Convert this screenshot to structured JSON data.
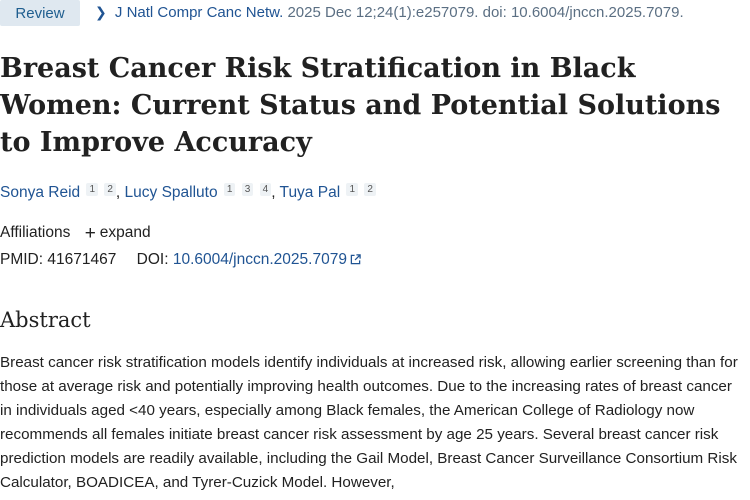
{
  "header": {
    "pub_type": "Review",
    "journal": "J Natl Compr Canc Netw.",
    "citation_rest": "2025 Dec 12;24(1):e257079. doi: 10.6004/jnccn.2025.7079."
  },
  "article": {
    "title": "Breast Cancer Risk Stratification in Black Women: Current Status and Potential Solutions to Improve Accuracy",
    "authors": [
      {
        "name": "Sonya Reid",
        "affiliations": [
          "1",
          "2"
        ]
      },
      {
        "name": "Lucy Spalluto",
        "affiliations": [
          "1",
          "3",
          "4"
        ]
      },
      {
        "name": "Tuya Pal",
        "affiliations": [
          "1",
          "2"
        ]
      }
    ],
    "author_separator": ",",
    "affiliations_label": "Affiliations",
    "expand_label": "expand",
    "pmid_label": "PMID:",
    "pmid": "41671467",
    "doi_label": "DOI:",
    "doi": "10.6004/jnccn.2025.7079"
  },
  "abstract": {
    "heading": "Abstract",
    "text": "Breast cancer risk stratification models identify individuals at increased risk, allowing earlier screening than for those at average risk and potentially improving health outcomes. Due to the increasing rates of breast cancer in individuals aged <40 years, especially among Black females, the American College of Radiology now recommends all females initiate breast cancer risk assessment by age 25 years. Several breast cancer risk prediction models are readily available, including the Gail Model, Breast Cancer Surveillance Consortium Risk Calculator, BOADICEA, and Tyrer-Cuzick Model. However,"
  }
}
